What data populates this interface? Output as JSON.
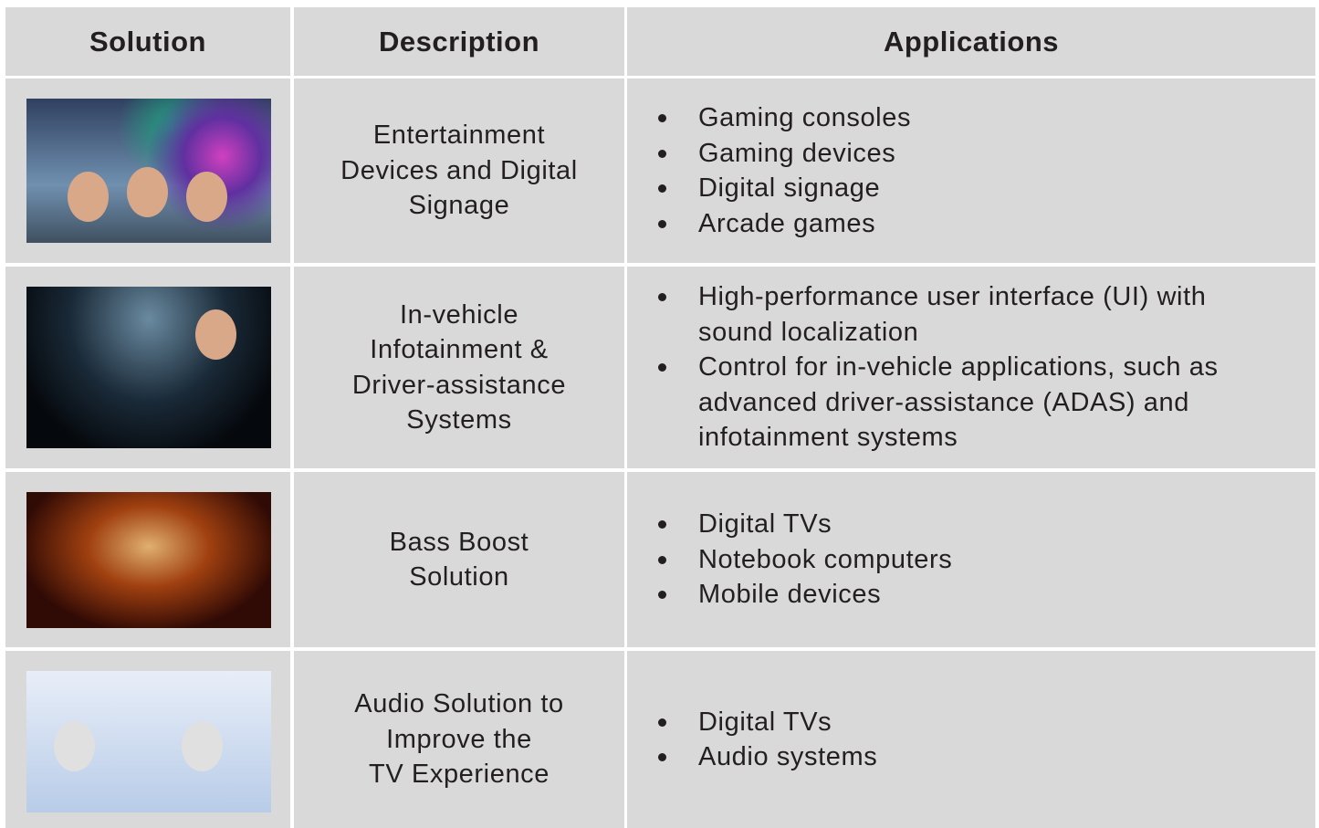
{
  "table": {
    "headers": [
      "Solution",
      "Description",
      "Applications"
    ],
    "rows": [
      {
        "description": [
          "Entertainment",
          "Devices and Digital",
          "Signage"
        ],
        "applications": [
          "Gaming consoles",
          "Gaming devices",
          "Digital signage",
          "Arcade games"
        ]
      },
      {
        "description": [
          "In-vehicle",
          "Infotainment &",
          "Driver-assistance",
          "Systems"
        ],
        "applications": [
          "High-performance user interface (UI) with sound localization",
          "Control for in-vehicle applications, such as advanced driver-assistance (ADAS) and infotainment systems"
        ]
      },
      {
        "description": [
          "Bass Boost",
          "Solution"
        ],
        "applications": [
          "Digital TVs",
          "Notebook computers",
          "Mobile devices"
        ]
      },
      {
        "description": [
          "Audio Solution to",
          "Improve the",
          "TV Experience"
        ],
        "applications": [
          "Digital TVs",
          "Audio systems"
        ]
      }
    ]
  }
}
